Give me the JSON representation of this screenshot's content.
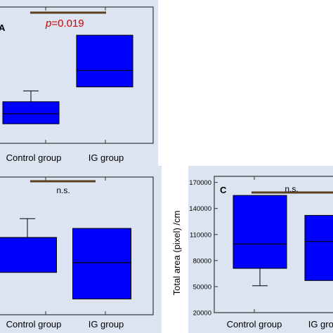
{
  "chart_data": [
    {
      "type": "box",
      "panel_label": "A",
      "categories": [
        "Control group",
        "IG group"
      ],
      "boxes": [
        {
          "whisker_low": 0.83,
          "q1": 0.83,
          "median": 1.26,
          "q3": 1.77,
          "whisker_high": 2.23
        },
        {
          "whisker_low": 2.4,
          "q1": 2.4,
          "median": 3.1,
          "q3": 4.6,
          "whisker_high": 4.6
        }
      ],
      "ylim": [
        0,
        5.8
      ],
      "annotation": {
        "p_label": "p",
        "p_value": "=0.019"
      },
      "colors": {
        "box": "#0000ff",
        "background": "#dbe4f0",
        "annotation": "#cc0000",
        "bracket": "#5a4020"
      }
    },
    {
      "type": "box",
      "panel_label": "",
      "categories": [
        "Control group",
        "IG group"
      ],
      "boxes": [
        {
          "whisker_low": 1.26,
          "q1": 1.26,
          "median": 2.3,
          "q3": 2.3,
          "whisker_high": 2.86
        },
        {
          "whisker_low": 0.47,
          "q1": 0.47,
          "median": 1.55,
          "q3": 2.57,
          "whisker_high": 2.57
        }
      ],
      "ylim": [
        0,
        4.1
      ],
      "annotation": {
        "text": "n.s."
      },
      "colors": {
        "box": "#0000ff",
        "background": "#dbe4f0",
        "bracket": "#5a4020"
      }
    },
    {
      "type": "box",
      "panel_label": "C",
      "categories": [
        "Control group",
        "IG group"
      ],
      "ylabel": "Total area (pixel) /cm",
      "yticks": [
        20000,
        50000,
        80000,
        110000,
        140000,
        170000
      ],
      "boxes": [
        {
          "whisker_low": 51000,
          "q1": 71000,
          "median": 99000,
          "q3": 155000,
          "whisker_high": 155000
        },
        {
          "whisker_low": 57000,
          "q1": 57000,
          "median": 102000,
          "q3": 132000,
          "whisker_high": 132000
        }
      ],
      "ylim": [
        20000,
        177000
      ],
      "annotation": {
        "text": "n.s."
      },
      "colors": {
        "box": "#0000ff",
        "background": "#dbe4f0",
        "bracket": "#5a4020"
      }
    }
  ]
}
